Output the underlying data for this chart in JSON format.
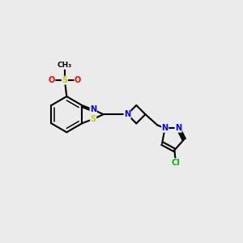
{
  "background_color": "#ebebeb",
  "bond_color": "#000000",
  "atom_colors": {
    "N": "#0000ff",
    "S": "#cccc00",
    "O": "#ff0000",
    "Cl": "#00bb00",
    "C": "#000000"
  },
  "figsize": [
    3.0,
    3.0
  ],
  "dpi": 100
}
